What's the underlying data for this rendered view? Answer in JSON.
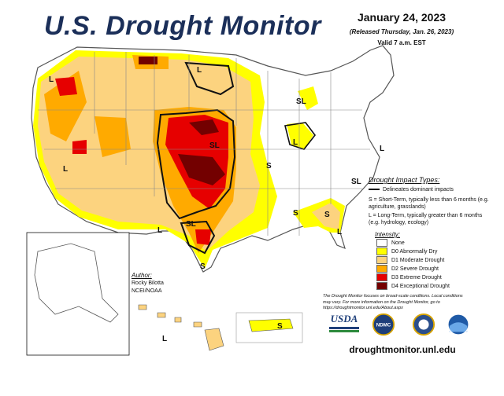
{
  "header": {
    "title": "U.S. Drought Monitor",
    "date": "January 24, 2023",
    "released": "(Released Thursday, Jan. 26, 2023)",
    "valid": "Valid 7 a.m. EST"
  },
  "impact_legend": {
    "title": "Drought Impact Types:",
    "delineates": "Delineates dominant impacts",
    "short_term": "S = Short-Term, typically less than 6 months (e.g. agriculture, grasslands)",
    "long_term": "L = Long-Term, typically greater than 6 months (e.g. hydrology, ecology)"
  },
  "intensity_legend": {
    "title": "Intensity:",
    "items": [
      {
        "label": "None",
        "color": "#ffffff"
      },
      {
        "label": "D0 Abnormally Dry",
        "color": "#ffff00"
      },
      {
        "label": "D1 Moderate Drought",
        "color": "#fcd37f"
      },
      {
        "label": "D2 Severe Drought",
        "color": "#ffaa00"
      },
      {
        "label": "D3 Extreme Drought",
        "color": "#e60000"
      },
      {
        "label": "D4 Exceptional Drought",
        "color": "#730000"
      }
    ]
  },
  "author": {
    "title": "Author:",
    "name": "Rocky Bilotta",
    "org": "NCEI/NOAA"
  },
  "note": "The Drought Monitor focuses on broad-scale conditions. Local conditions may vary. For more information on the Drought Monitor, go to https://droughtmonitor.unl.edu/About.aspx",
  "logos": {
    "usda": "USDA",
    "ndmc": "NDMC"
  },
  "website": "droughtmonitor.unl.edu",
  "map_labels": {
    "l": "L",
    "s": "S",
    "sl": "SL"
  }
}
